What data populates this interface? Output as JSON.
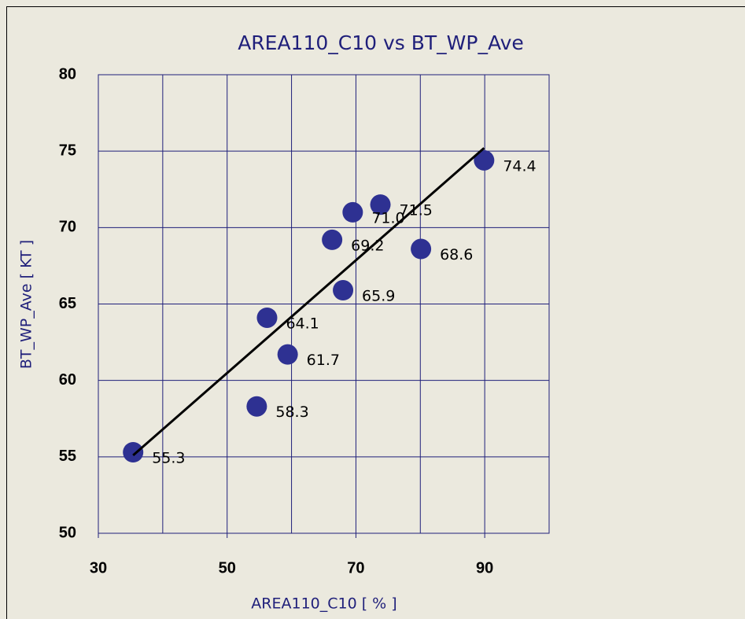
{
  "chart_data": {
    "type": "scatter",
    "title": "AREA110_C10 vs BT_WP_Ave",
    "x_label": "AREA110_C10 [ % ]",
    "y_label": "BT_WP_Ave [ KT ]",
    "xlim": [
      30,
      100
    ],
    "xticks": [
      30,
      50,
      70,
      90
    ],
    "xgridlines": [
      30,
      40,
      50,
      60,
      70,
      80,
      90,
      100
    ],
    "ylim": [
      50,
      80
    ],
    "yticks": [
      50,
      55,
      60,
      65,
      70,
      75,
      80
    ],
    "grid": true,
    "series": [
      {
        "color": "#2e3192",
        "x": [
          35.4,
          54.6,
          59.4,
          56.2,
          68.0,
          66.3,
          69.5,
          73.8,
          80.1,
          89.9
        ],
        "values": [
          55.3,
          58.3,
          61.7,
          64.1,
          65.9,
          69.2,
          71.0,
          71.5,
          68.6,
          74.4
        ],
        "value_labels": [
          "55.3",
          "58.3",
          "61.7",
          "64.1",
          "65.9",
          "69.2",
          "71.0",
          "71.5",
          "68.6",
          "74.4"
        ]
      }
    ],
    "trendline": {
      "color": "#000000",
      "x": [
        35.4,
        89.9
      ],
      "values": [
        55.1,
        75.2
      ]
    }
  }
}
